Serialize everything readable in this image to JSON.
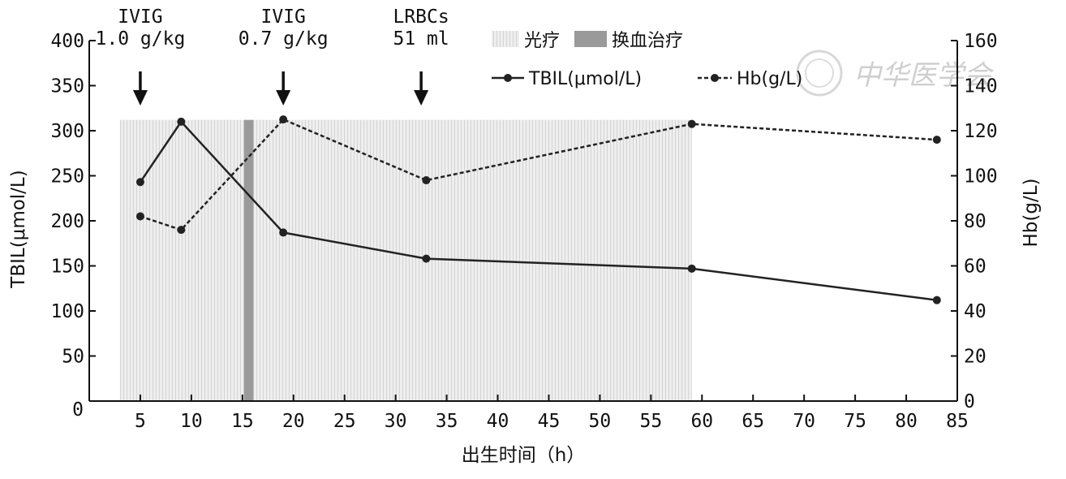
{
  "chart_data": {
    "type": "line",
    "x_axis": {
      "label": "出生时间（h）",
      "range": [
        0,
        85
      ],
      "ticks": [
        0,
        5,
        10,
        15,
        20,
        25,
        30,
        35,
        40,
        45,
        50,
        55,
        60,
        65,
        70,
        75,
        80,
        85
      ],
      "tick_labels": [
        "0",
        "5",
        "10",
        "15",
        "20",
        "25",
        "30",
        "35",
        "40",
        "45",
        "50",
        "55",
        "60",
        "65",
        "70",
        "75",
        "80",
        "85"
      ]
    },
    "y_left": {
      "label": "TBIL(μmol/L)",
      "range": [
        0,
        400
      ],
      "ticks": [
        50,
        100,
        150,
        200,
        250,
        300,
        350,
        400
      ],
      "tick_labels": [
        "50",
        "100",
        "150",
        "200",
        "250",
        "300",
        "350",
        "400"
      ]
    },
    "y_right": {
      "label": "Hb(g/L)",
      "range": [
        0,
        160
      ],
      "ticks": [
        0,
        20,
        40,
        60,
        80,
        100,
        120,
        140,
        160
      ],
      "tick_labels": [
        "0",
        "20",
        "40",
        "60",
        "80",
        "100",
        "120",
        "140",
        "160"
      ]
    },
    "series": [
      {
        "name": "TBIL(μmol/L)",
        "axis": "left",
        "style": "solid",
        "x": [
          5,
          9,
          19,
          33,
          59,
          83
        ],
        "values": [
          243,
          310,
          187,
          158,
          147,
          112
        ]
      },
      {
        "name": "Hb(g/L)",
        "axis": "right",
        "style": "dashed",
        "x": [
          5,
          9,
          19,
          33,
          59,
          83
        ],
        "values": [
          82,
          76,
          125,
          98,
          123,
          116
        ]
      }
    ],
    "phototherapy": {
      "label": "光疗",
      "x_range": [
        3,
        59
      ],
      "y_max_left": 312
    },
    "exchange_transfusion": {
      "label": "换血治疗",
      "x_range": [
        15,
        16
      ]
    },
    "annotations": [
      {
        "x": 5,
        "lines": [
          "IVIG",
          "1.0 g/kg"
        ]
      },
      {
        "x": 19,
        "lines": [
          "IVIG",
          "0.7 g/kg"
        ]
      },
      {
        "x": 32.5,
        "lines": [
          "LRBCs",
          "51 ml"
        ]
      }
    ],
    "legend": {
      "items": [
        "光疗",
        "换血治疗",
        "TBIL(μmol/L)",
        "Hb(g/L)"
      ],
      "placement": "top-right"
    }
  },
  "watermark": "中华医学会",
  "colors": {
    "line": "#222222",
    "photo_fill": "#e6e6e6",
    "exchange_fill": "#9a9a9a"
  }
}
